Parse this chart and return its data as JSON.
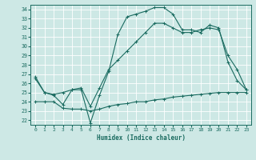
{
  "xlabel": "Humidex (Indice chaleur)",
  "xlim": [
    -0.5,
    23.5
  ],
  "ylim": [
    21.5,
    34.5
  ],
  "xticks": [
    0,
    1,
    2,
    3,
    4,
    5,
    6,
    7,
    8,
    9,
    10,
    11,
    12,
    13,
    14,
    15,
    16,
    17,
    18,
    19,
    20,
    21,
    22,
    23
  ],
  "yticks": [
    22,
    23,
    24,
    25,
    26,
    27,
    28,
    29,
    30,
    31,
    32,
    33,
    34
  ],
  "background_color": "#cde8e5",
  "grid_color": "#ffffff",
  "line_color": "#1a6b60",
  "curve1_x": [
    0,
    1,
    2,
    3,
    4,
    5,
    6,
    7,
    8,
    9,
    10,
    11,
    12,
    13,
    14,
    15,
    16,
    17,
    18,
    19,
    20,
    21,
    22,
    23
  ],
  "curve1_y": [
    26.7,
    25.0,
    24.7,
    23.7,
    25.3,
    25.3,
    21.7,
    24.7,
    27.3,
    31.3,
    33.2,
    33.5,
    33.8,
    34.2,
    34.2,
    33.5,
    31.8,
    31.8,
    31.5,
    32.3,
    32.0,
    28.3,
    26.3,
    25.3
  ],
  "curve2_x": [
    0,
    1,
    2,
    3,
    4,
    5,
    6,
    7,
    8,
    9,
    10,
    11,
    12,
    13,
    14,
    15,
    16,
    17,
    18,
    19,
    20,
    21,
    22,
    23
  ],
  "curve2_y": [
    26.5,
    25.0,
    24.8,
    25.0,
    25.3,
    25.5,
    23.5,
    25.5,
    27.5,
    28.5,
    29.5,
    30.5,
    31.5,
    32.5,
    32.5,
    32.0,
    31.5,
    31.5,
    31.8,
    32.0,
    31.8,
    29.0,
    27.5,
    25.3
  ],
  "curve3_x": [
    0,
    1,
    2,
    3,
    4,
    5,
    6,
    7,
    8,
    9,
    10,
    11,
    12,
    13,
    14,
    15,
    16,
    17,
    18,
    19,
    20,
    21,
    22,
    23
  ],
  "curve3_y": [
    24.0,
    24.0,
    24.0,
    23.3,
    23.2,
    23.2,
    23.0,
    23.2,
    23.5,
    23.7,
    23.8,
    24.0,
    24.0,
    24.2,
    24.3,
    24.5,
    24.6,
    24.7,
    24.8,
    24.9,
    25.0,
    25.0,
    25.0,
    25.0
  ]
}
